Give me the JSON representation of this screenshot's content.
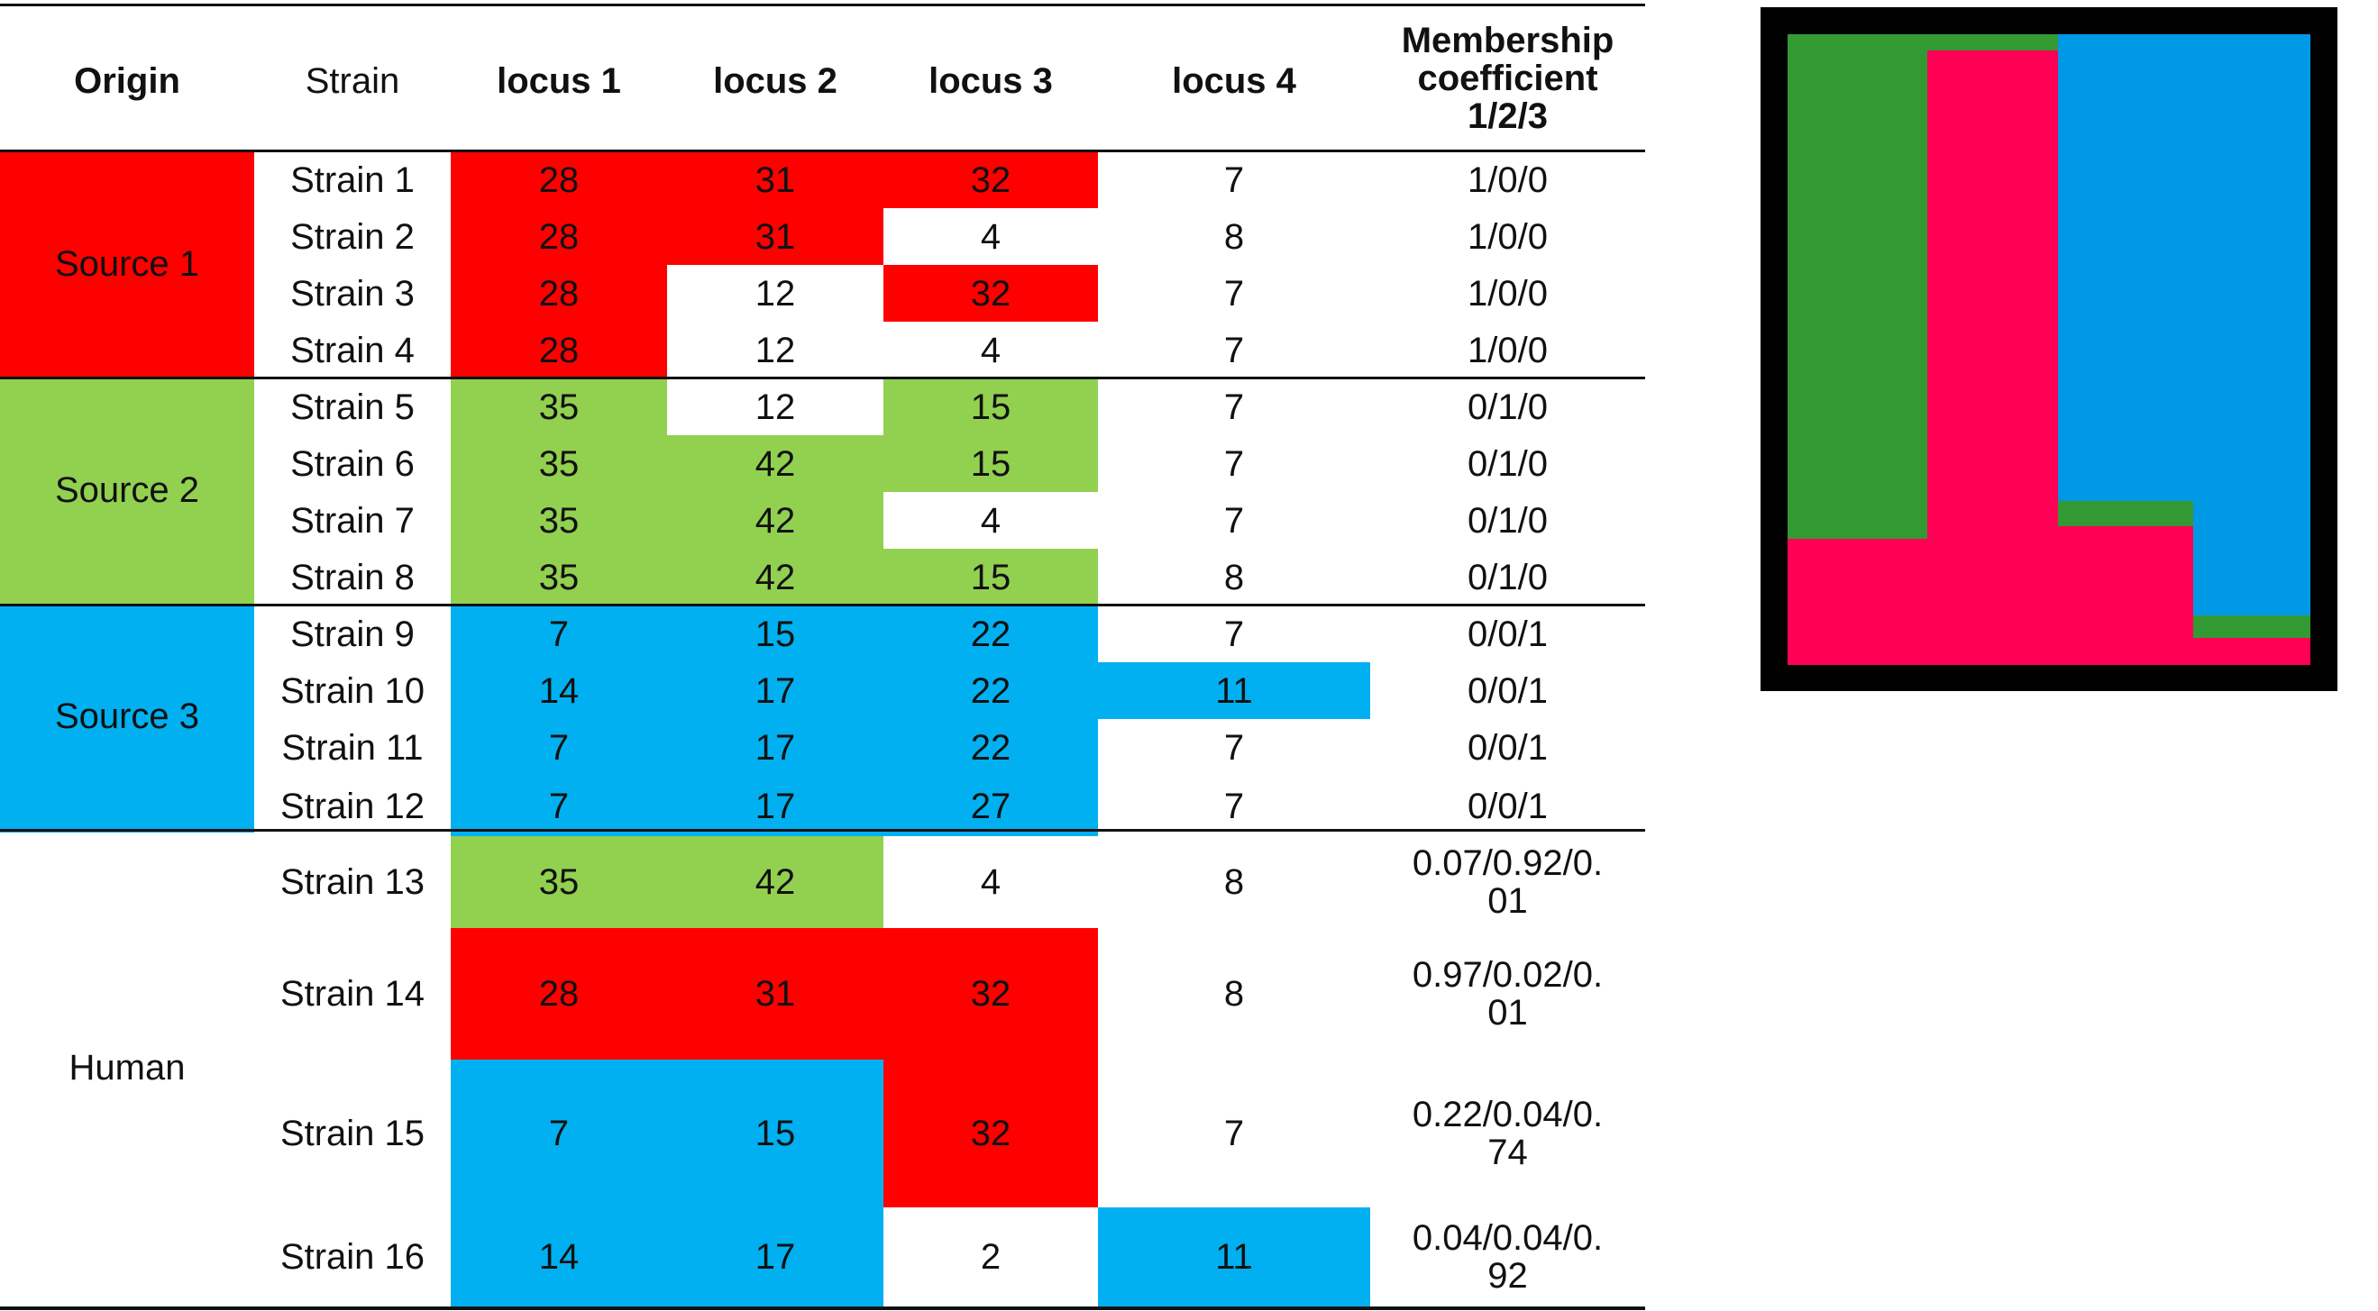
{
  "colors": {
    "source1": "#ff0000",
    "source2": "#92d050",
    "source3": "#00b0f0",
    "plot_green": "#339933",
    "plot_pink": "#ff0055",
    "plot_blue": "#0099e6"
  },
  "table": {
    "headers": {
      "origin": "Origin",
      "strain": "Strain",
      "locus1": "locus 1",
      "locus2": "locus 2",
      "locus3": "locus 3",
      "locus4": "locus 4",
      "membership": "Membership\ncoefficient\n1/2/3"
    },
    "groups": [
      {
        "label": "Source 1",
        "color": "source1"
      },
      {
        "label": "Source 2",
        "color": "source2"
      },
      {
        "label": "Source 3",
        "color": "source3"
      },
      {
        "label": "Human",
        "color": ""
      }
    ],
    "rows": [
      {
        "strain": "Strain 1",
        "l1": "28",
        "l2": "31",
        "l3": "32",
        "l4": "7",
        "membership": "1/0/0",
        "colors": [
          "source1",
          "source1",
          "source1",
          ""
        ]
      },
      {
        "strain": "Strain 2",
        "l1": "28",
        "l2": "31",
        "l3": "4",
        "l4": "8",
        "membership": "1/0/0",
        "colors": [
          "source1",
          "source1",
          "",
          ""
        ]
      },
      {
        "strain": "Strain 3",
        "l1": "28",
        "l2": "12",
        "l3": "32",
        "l4": "7",
        "membership": "1/0/0",
        "colors": [
          "source1",
          "",
          "source1",
          ""
        ]
      },
      {
        "strain": "Strain 4",
        "l1": "28",
        "l2": "12",
        "l3": "4",
        "l4": "7",
        "membership": "1/0/0",
        "colors": [
          "source1",
          "",
          "",
          ""
        ]
      },
      {
        "strain": "Strain 5",
        "l1": "35",
        "l2": "12",
        "l3": "15",
        "l4": "7",
        "membership": "0/1/0",
        "colors": [
          "source2",
          "",
          "source2",
          ""
        ]
      },
      {
        "strain": "Strain 6",
        "l1": "35",
        "l2": "42",
        "l3": "15",
        "l4": "7",
        "membership": "0/1/0",
        "colors": [
          "source2",
          "source2",
          "source2",
          ""
        ]
      },
      {
        "strain": "Strain 7",
        "l1": "35",
        "l2": "42",
        "l3": "4",
        "l4": "7",
        "membership": "0/1/0",
        "colors": [
          "source2",
          "source2",
          "",
          ""
        ]
      },
      {
        "strain": "Strain 8",
        "l1": "35",
        "l2": "42",
        "l3": "15",
        "l4": "8",
        "membership": "0/1/0",
        "colors": [
          "source2",
          "source2",
          "source2",
          ""
        ]
      },
      {
        "strain": "Strain 9",
        "l1": "7",
        "l2": "15",
        "l3": "22",
        "l4": "7",
        "membership": "0/0/1",
        "colors": [
          "source3",
          "source3",
          "source3",
          ""
        ]
      },
      {
        "strain": "Strain 10",
        "l1": "14",
        "l2": "17",
        "l3": "22",
        "l4": "11",
        "membership": "0/0/1",
        "colors": [
          "source3",
          "source3",
          "source3",
          "source3"
        ]
      },
      {
        "strain": "Strain 11",
        "l1": "7",
        "l2": "17",
        "l3": "22",
        "l4": "7",
        "membership": "0/0/1",
        "colors": [
          "source3",
          "source3",
          "source3",
          ""
        ]
      },
      {
        "strain": "Strain 12",
        "l1": "7",
        "l2": "17",
        "l3": "27",
        "l4": "7",
        "membership": "0/0/1",
        "colors": [
          "source3",
          "source3",
          "source3",
          ""
        ]
      },
      {
        "strain": "Strain 13",
        "l1": "35",
        "l2": "42",
        "l3": "4",
        "l4": "8",
        "membership": "0.07/0.92/0.\n01",
        "colors": [
          "source2",
          "source2",
          "",
          ""
        ]
      },
      {
        "strain": "Strain 14",
        "l1": "28",
        "l2": "31",
        "l3": "32",
        "l4": "8",
        "membership": "0.97/0.02/0.\n01",
        "colors": [
          "source1",
          "source1",
          "source1",
          ""
        ]
      },
      {
        "strain": "Strain 15",
        "l1": "7",
        "l2": "15",
        "l3": "32",
        "l4": "7",
        "membership": "0.22/0.04/0.\n74",
        "colors": [
          "source3",
          "source3",
          "source1",
          ""
        ]
      },
      {
        "strain": "Strain 16",
        "l1": "14",
        "l2": "17",
        "l3": "2",
        "l4": "11",
        "membership": "0.04/0.04/0.\n92",
        "colors": [
          "source3",
          "source3",
          "",
          "source3"
        ]
      }
    ]
  }
}
